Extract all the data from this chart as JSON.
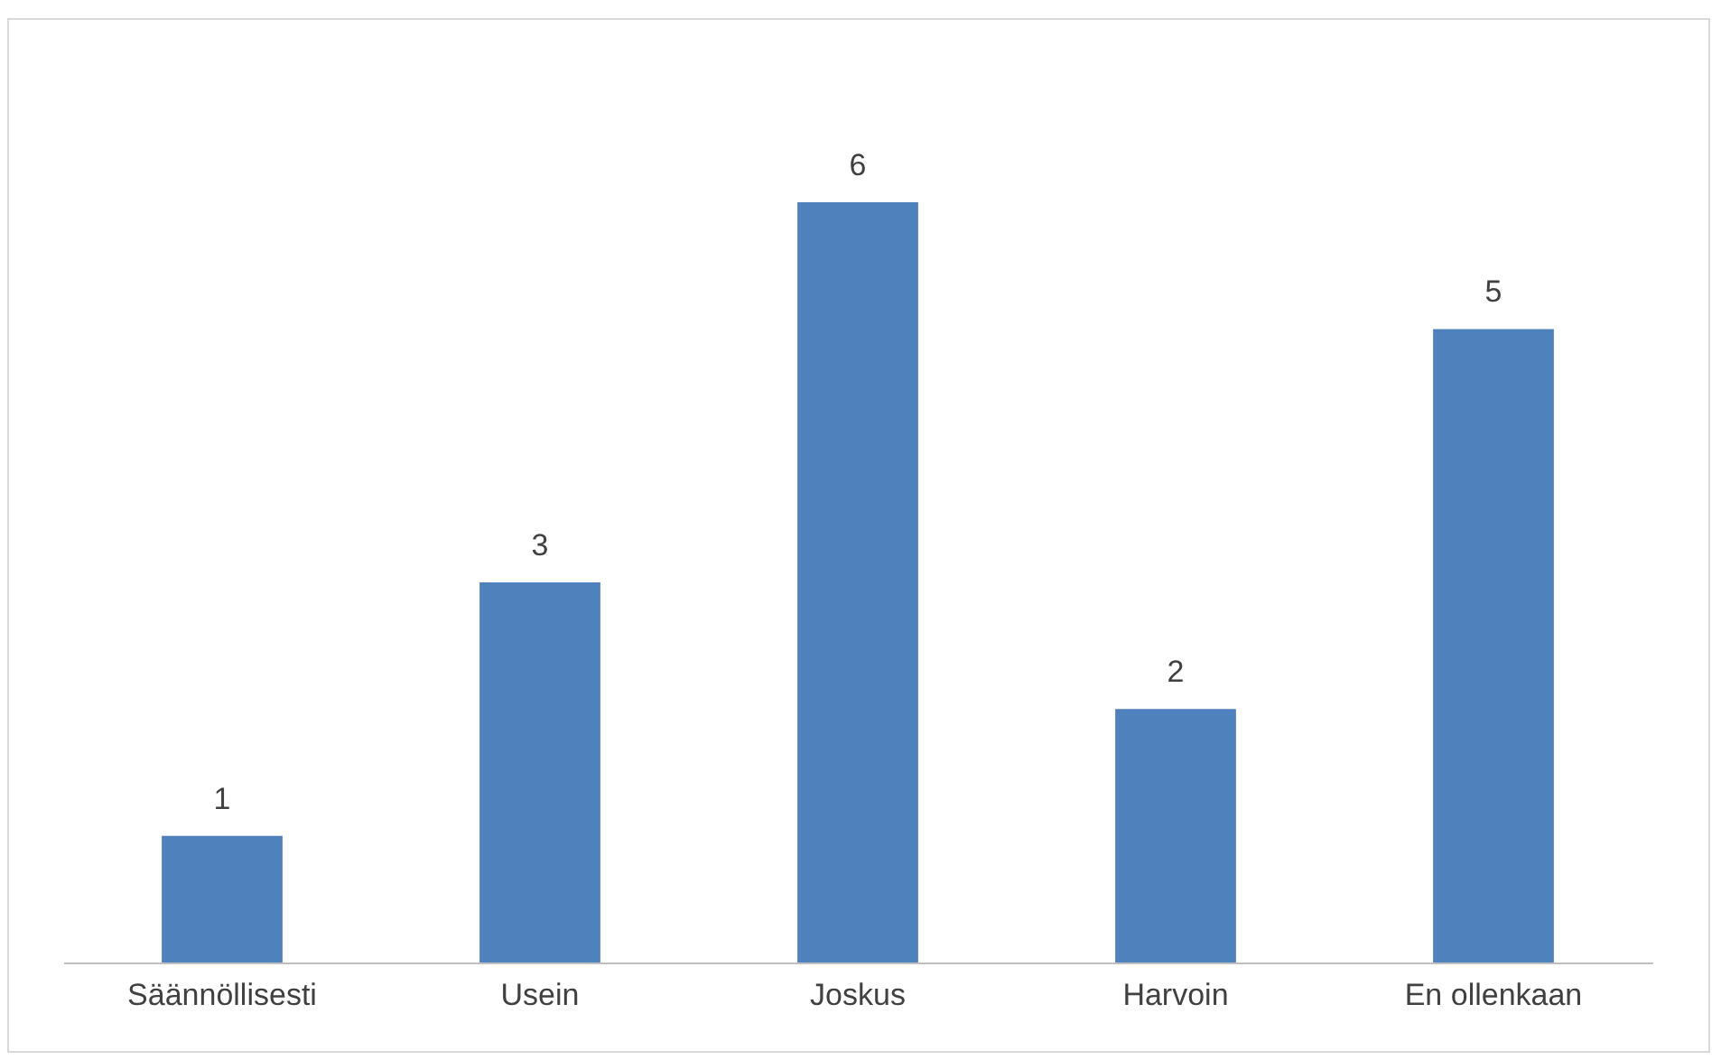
{
  "chart_data": {
    "type": "bar",
    "categories": [
      "Säännöllisesti",
      "Usein",
      "Joskus",
      "Harvoin",
      "En ollenkaan"
    ],
    "values": [
      1,
      3,
      6,
      2,
      5
    ],
    "color": "#4f81bd",
    "data_labels": true
  }
}
